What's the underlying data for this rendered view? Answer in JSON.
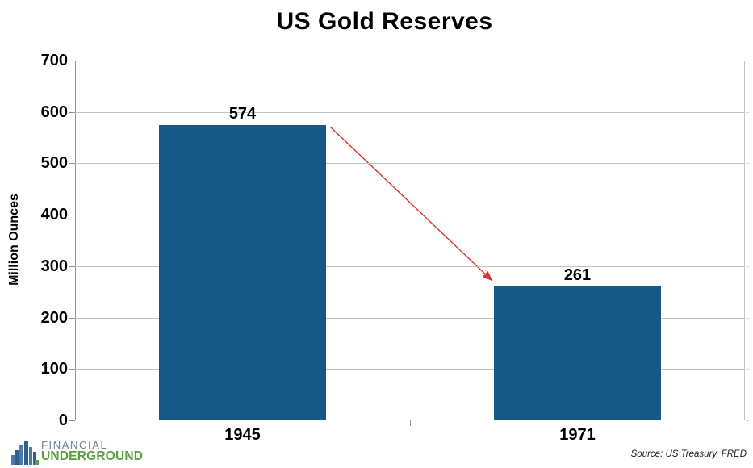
{
  "chart_data": {
    "type": "bar",
    "title": "US Gold Reserves",
    "categories": [
      "1945",
      "1971"
    ],
    "values": [
      574,
      261
    ],
    "data_labels": [
      "574",
      "261"
    ],
    "xlabel": "",
    "ylabel": "Million Ounces",
    "ylim": [
      0,
      700
    ],
    "ytick_step": 100,
    "yticks": [
      0,
      100,
      200,
      300,
      400,
      500,
      600,
      700
    ],
    "grid": true,
    "legend_position": "none",
    "bar_color": "#155987",
    "bar_width_fraction": 0.5,
    "annotation": {
      "type": "arrow",
      "from": {
        "category": "1945",
        "value": 574
      },
      "to": {
        "category": "1971",
        "value": 261
      },
      "color": "#d8332c"
    }
  },
  "footer": {
    "source": "Source: US Treasury, FRED",
    "logo": {
      "line1": "FINANCIAL",
      "line2": "UNDERGROUND",
      "line1_color": "#6b8299",
      "line2_color": "#5ca03c",
      "icon": "skyline-bars-icon",
      "icon_blue_dark": "#2f5f8f",
      "icon_blue_light": "#4a7aa8",
      "icon_green": "#5ca03c"
    }
  },
  "style": {
    "grid_color": "#c2c2c2",
    "axis_color": "#8f8f8f",
    "text_color": "#000000",
    "background": "#ffffff"
  }
}
